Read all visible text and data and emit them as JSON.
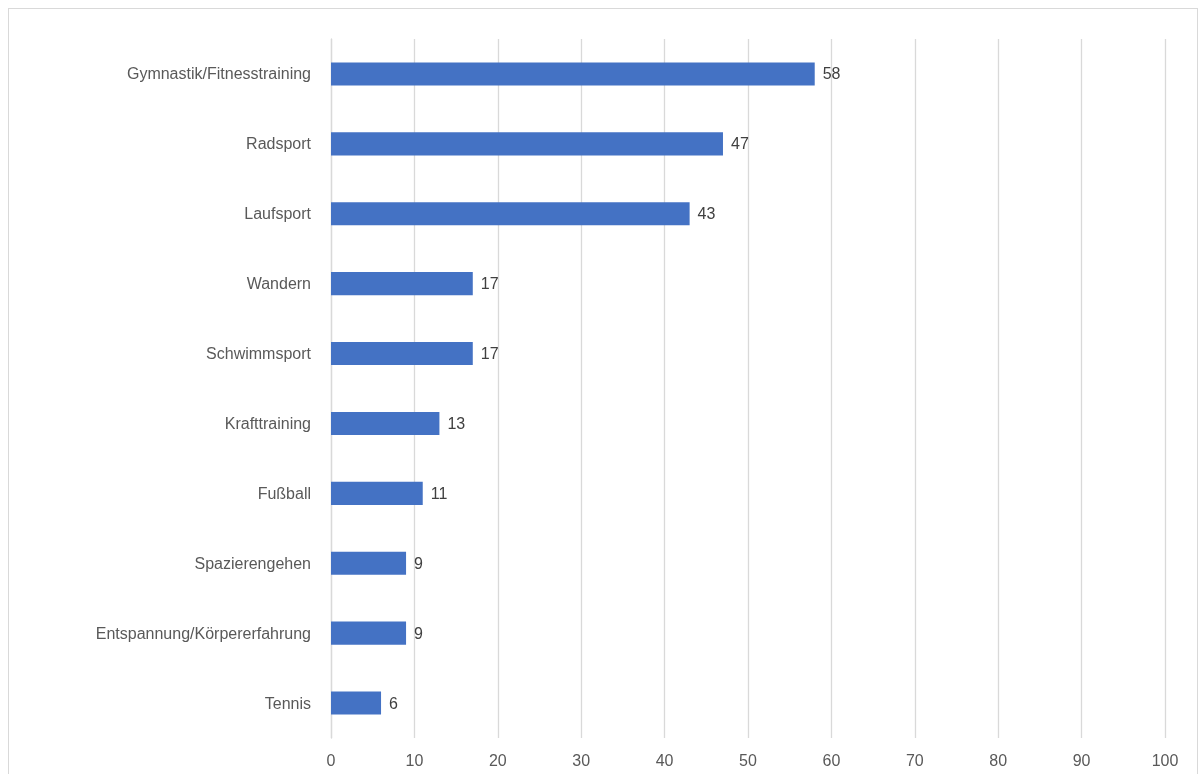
{
  "chart_data": {
    "type": "bar",
    "orientation": "horizontal",
    "categories": [
      "Gymnastik/Fitnesstraining",
      "Radsport",
      "Laufsport",
      "Wandern",
      "Schwimmsport",
      "Krafttraining",
      "Fußball",
      "Spazierengehen",
      "Entspannung/Körpererfahrung",
      "Tennis"
    ],
    "values": [
      58,
      47,
      43,
      17,
      17,
      13,
      11,
      9,
      9,
      6
    ],
    "color": "#4472c4",
    "xlim": [
      0,
      100
    ],
    "xticks": [
      0,
      10,
      20,
      30,
      40,
      50,
      60,
      70,
      80,
      90,
      100
    ],
    "grid": "x",
    "data_labels": true
  }
}
